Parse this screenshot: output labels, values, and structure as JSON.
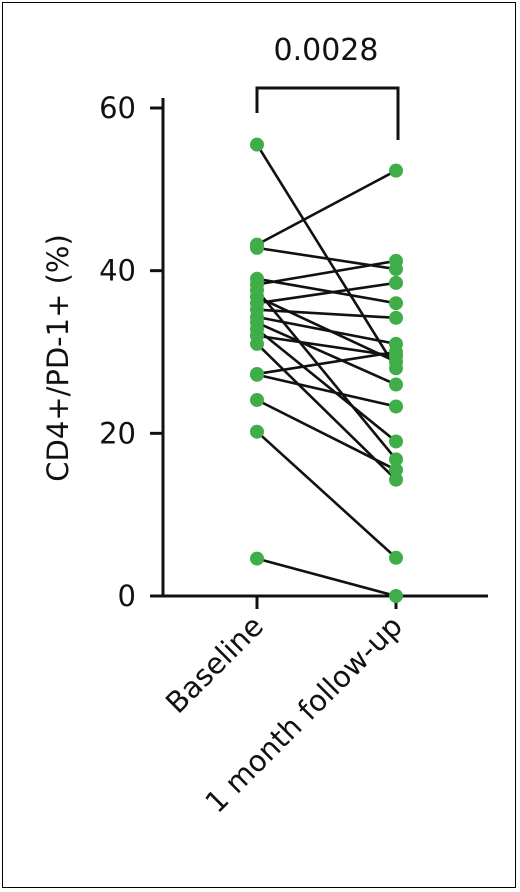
{
  "chart_data": {
    "type": "scatter",
    "subtype": "paired-dot",
    "ylabel": "CD4+/PD-1+ (%)",
    "ylim": [
      0,
      60
    ],
    "yticks": [
      0,
      20,
      40,
      60
    ],
    "categories": [
      "Baseline",
      "1 month follow-up"
    ],
    "significance": {
      "label": "0.0028",
      "between": [
        "Baseline",
        "1 month follow-up"
      ]
    },
    "point_color": "#3fae49",
    "line_color": "#111111",
    "pairs": [
      [
        55.5,
        28.0
      ],
      [
        43.2,
        52.3
      ],
      [
        42.8,
        40.2
      ],
      [
        39.0,
        36.0
      ],
      [
        38.3,
        41.2
      ],
      [
        37.6,
        16.8
      ],
      [
        36.8,
        28.8
      ],
      [
        36.0,
        38.5
      ],
      [
        35.2,
        34.2
      ],
      [
        34.3,
        31.0
      ],
      [
        33.6,
        26.0
      ],
      [
        32.8,
        19.0
      ],
      [
        32.0,
        29.5
      ],
      [
        31.0,
        14.3
      ],
      [
        27.3,
        30.0
      ],
      [
        27.2,
        23.3
      ],
      [
        24.1,
        15.5
      ],
      [
        20.2,
        4.7
      ],
      [
        4.6,
        0.0
      ]
    ]
  }
}
